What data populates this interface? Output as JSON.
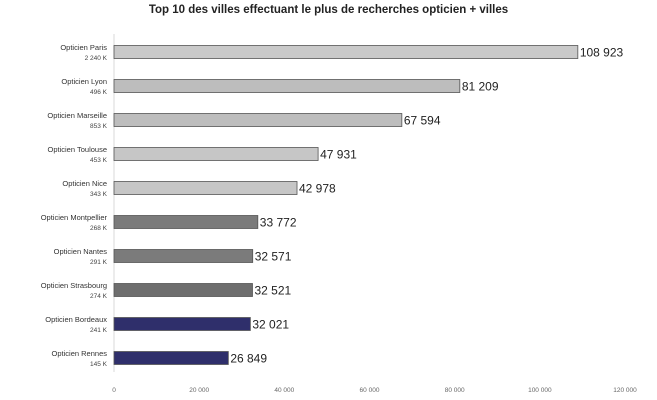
{
  "chart_data": {
    "type": "bar",
    "orientation": "horizontal",
    "title": "Top 10 des villes effectuant le plus de recherches opticien + villes",
    "categories": [
      "Opticien Paris",
      "Opticien Lyon",
      "Opticien Marseille",
      "Opticien Toulouse",
      "Opticien Nice",
      "Opticien Montpellier",
      "Opticien Nantes",
      "Opticien Strasbourg",
      "Opticien Bordeaux",
      "Opticien Rennes"
    ],
    "population_labels": [
      "2 240 K",
      "496 K",
      "853 K",
      "453 K",
      "343 K",
      "268 K",
      "291 K",
      "274 K",
      "241 K",
      "145 K"
    ],
    "values": [
      108923,
      81209,
      67594,
      47931,
      42978,
      33772,
      32571,
      32521,
      32021,
      26849
    ],
    "value_labels": [
      "108 923",
      "81 209",
      "67 594",
      "47 931",
      "42 978",
      "33 772",
      "32 571",
      "32 521",
      "32 021",
      "26 849"
    ],
    "bar_colors": [
      "#c9c9c9",
      "#bdbdbd",
      "#bdbdbd",
      "#c6c6c6",
      "#c6c6c6",
      "#7b7b7b",
      "#7b7b7b",
      "#6e6e6e",
      "#2f2f6b",
      "#2f2f6b"
    ],
    "xlim": [
      0,
      120000
    ],
    "xticks": [
      0,
      20000,
      40000,
      60000,
      80000,
      100000,
      120000
    ],
    "xtick_labels": [
      "0",
      "20 000",
      "40 000",
      "60 000",
      "80 000",
      "100 000",
      "120 000"
    ],
    "grid": false,
    "legend": "none"
  }
}
